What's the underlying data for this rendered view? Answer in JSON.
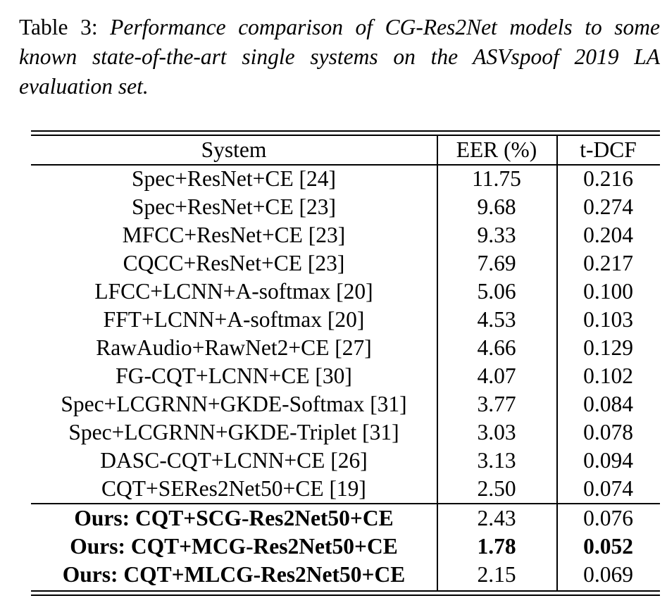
{
  "caption": {
    "lead": "Table 3:",
    "text": "Performance comparison of CG-Res2Net models to some known state-of-the-art single systems on the ASVspoof 2019 LA evaluation set."
  },
  "table": {
    "headers": [
      "System",
      "EER (%)",
      "t-DCF"
    ],
    "rows": [
      {
        "system": "Spec+ResNet+CE [24]",
        "eer": "11.75",
        "tdcf": "0.216"
      },
      {
        "system": "Spec+ResNet+CE [23]",
        "eer": "9.68",
        "tdcf": "0.274"
      },
      {
        "system": "MFCC+ResNet+CE [23]",
        "eer": "9.33",
        "tdcf": "0.204"
      },
      {
        "system": "CQCC+ResNet+CE [23]",
        "eer": "7.69",
        "tdcf": "0.217"
      },
      {
        "system": "LFCC+LCNN+A-softmax [20]",
        "eer": "5.06",
        "tdcf": "0.100"
      },
      {
        "system": "FFT+LCNN+A-softmax [20]",
        "eer": "4.53",
        "tdcf": "0.103"
      },
      {
        "system": "RawAudio+RawNet2+CE [27]",
        "eer": "4.66",
        "tdcf": "0.129"
      },
      {
        "system": "FG-CQT+LCNN+CE [30]",
        "eer": "4.07",
        "tdcf": "0.102"
      },
      {
        "system": "Spec+LCGRNN+GKDE-Softmax [31]",
        "eer": "3.77",
        "tdcf": "0.084"
      },
      {
        "system": "Spec+LCGRNN+GKDE-Triplet [31]",
        "eer": "3.03",
        "tdcf": "0.078"
      },
      {
        "system": "DASC-CQT+LCNN+CE [26]",
        "eer": "3.13",
        "tdcf": "0.094"
      },
      {
        "system": "CQT+SERes2Net50+CE [19]",
        "eer": "2.50",
        "tdcf": "0.074"
      }
    ],
    "ours": [
      {
        "system": "Ours: CQT+SCG-Res2Net50+CE",
        "eer": "2.43",
        "tdcf": "0.076",
        "bold_eer": false,
        "bold_tdcf": false
      },
      {
        "system": "Ours: CQT+MCG-Res2Net50+CE",
        "eer": "1.78",
        "tdcf": "0.052",
        "bold_eer": true,
        "bold_tdcf": true
      },
      {
        "system": "Ours: CQT+MLCG-Res2Net50+CE",
        "eer": "2.15",
        "tdcf": "0.069",
        "bold_eer": false,
        "bold_tdcf": false
      }
    ]
  }
}
